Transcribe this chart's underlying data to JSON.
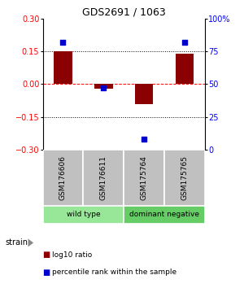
{
  "title": "GDS2691 / 1063",
  "samples": [
    "GSM176606",
    "GSM176611",
    "GSM175764",
    "GSM175765"
  ],
  "log10_ratio": [
    0.15,
    -0.02,
    -0.09,
    0.14
  ],
  "percentile_rank": [
    82,
    47,
    8,
    82
  ],
  "groups": [
    {
      "label": "wild type",
      "start": 0,
      "end": 2,
      "color": "#98e698"
    },
    {
      "label": "dominant negative",
      "start": 2,
      "end": 4,
      "color": "#66cc66"
    }
  ],
  "ylim_left": [
    -0.3,
    0.3
  ],
  "ylim_right": [
    0,
    100
  ],
  "yticks_left": [
    -0.3,
    -0.15,
    0,
    0.15,
    0.3
  ],
  "yticks_right": [
    0,
    25,
    50,
    75,
    100
  ],
  "bar_color": "#8B0000",
  "dot_color": "#0000CD",
  "bar_width": 0.45,
  "dot_size": 25,
  "legend_bar_label": "log10 ratio",
  "legend_dot_label": "percentile rank within the sample",
  "background_color": "#ffffff",
  "label_row_color": "#c0c0c0",
  "strain_label": "strain"
}
